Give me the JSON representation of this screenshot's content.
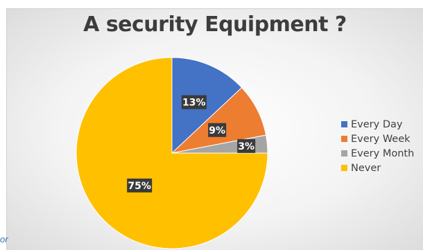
{
  "chart_data": {
    "type": "pie",
    "title": "A security Equipment ?",
    "categories": [
      "Every Day",
      "Every Week",
      "Every Month",
      "Never"
    ],
    "values": [
      13,
      9,
      3,
      75
    ],
    "data_labels": [
      "13%",
      "9%",
      "3%",
      "75%"
    ],
    "colors": [
      "#4472c4",
      "#ed7d31",
      "#a5a5a5",
      "#ffc000"
    ],
    "legend_position": "right",
    "start_angle": "12 o'clock, clockwise"
  },
  "corner_text": "or"
}
